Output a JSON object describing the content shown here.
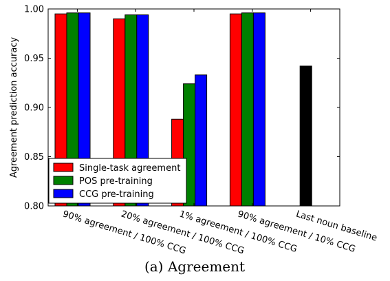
{
  "chart_data": {
    "type": "bar",
    "title": "",
    "xlabel": "",
    "ylabel": "Agreement prediction accuracy",
    "ylim": [
      0.8,
      1.0
    ],
    "yticks": [
      "0.80",
      "0.85",
      "0.90",
      "0.95",
      "1.00"
    ],
    "grid": false,
    "legend_position": "lower-left",
    "categories": [
      "90% agreement / 100% CCG",
      "20% agreement / 100% CCG",
      "1% agreement / 100% CCG",
      "90% agreement / 10% CCG",
      "Last noun baseline"
    ],
    "series": [
      {
        "name": "Single-task agreement",
        "color": "#ff0000",
        "values": [
          0.995,
          0.99,
          0.888,
          0.995,
          null
        ]
      },
      {
        "name": "POS pre-training",
        "color": "#008000",
        "values": [
          0.996,
          0.994,
          0.924,
          0.996,
          null
        ]
      },
      {
        "name": "CCG pre-training",
        "color": "#0000ff",
        "values": [
          0.996,
          0.994,
          0.933,
          0.996,
          null
        ]
      }
    ],
    "baseline": {
      "category": "Last noun baseline",
      "value": 0.942,
      "color": "#000000"
    }
  },
  "caption": "(a) Agreement"
}
